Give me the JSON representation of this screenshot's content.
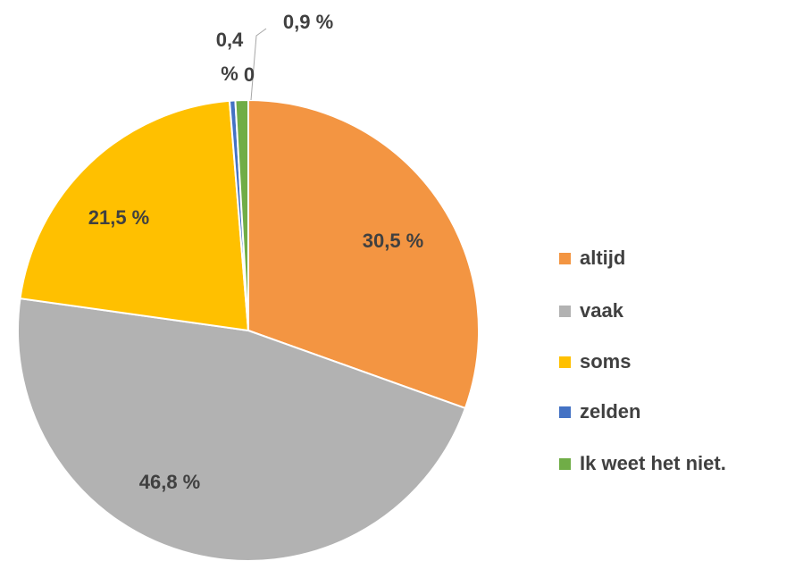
{
  "chart_data": {
    "type": "pie",
    "categories": [
      "altijd",
      "vaak",
      "soms",
      "zelden",
      "Ik weet het niet."
    ],
    "values": [
      30.5,
      46.8,
      21.5,
      0.4,
      0.9
    ],
    "value_labels": [
      "30,5 %",
      "46,8 %",
      "21,5 %",
      "0,4 %",
      "0,9 %"
    ],
    "colors": [
      "#f39542",
      "#b2b2b2",
      "#ffc000",
      "#4472c4",
      "#70ad47"
    ],
    "annotations": [
      "0"
    ],
    "legend": "right"
  }
}
